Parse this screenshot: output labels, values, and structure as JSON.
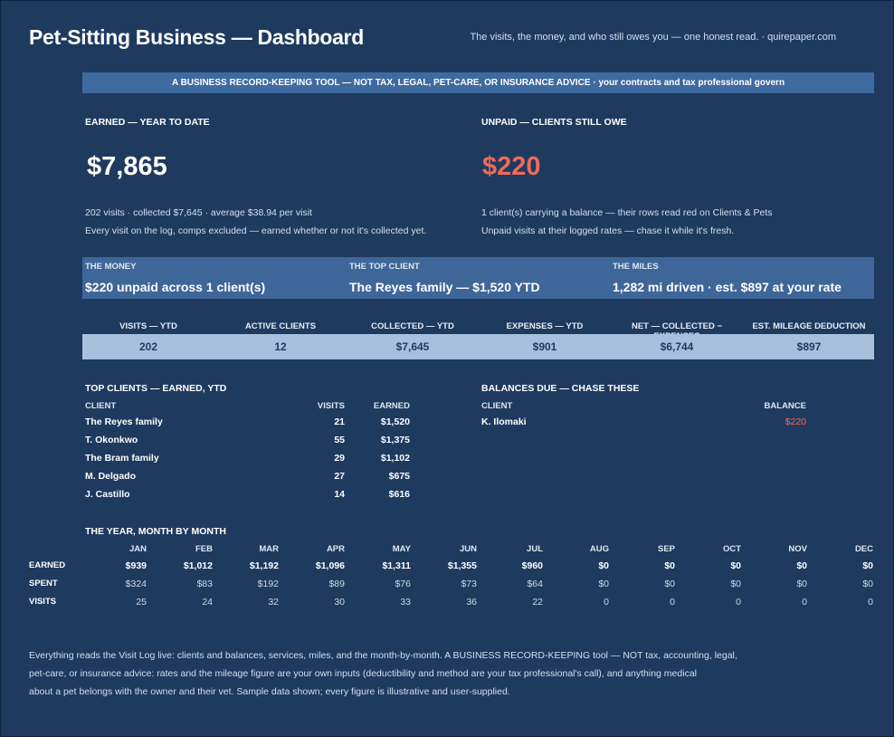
{
  "header": {
    "title": "Pet-Sitting Business — Dashboard",
    "tagline": "The visits, the money, and who still owes you — one honest read.  ·  quirepaper.com",
    "disclaimer": "A BUSINESS RECORD-KEEPING TOOL — NOT TAX, LEGAL, PET-CARE, OR INSURANCE ADVICE  ·  your contracts and tax professional govern"
  },
  "earned": {
    "label": "EARNED — YEAR TO DATE",
    "value": "$7,865",
    "note1": "202 visits  ·  collected $7,645  ·  average $38.94 per visit",
    "note2": "Every visit on the log, comps excluded — earned whether or not it's collected yet."
  },
  "unpaid": {
    "label": "UNPAID — CLIENTS STILL OWE",
    "value": "$220",
    "note1": "1 client(s) carrying a balance — their rows read red on Clients & Pets",
    "note2": "Unpaid visits at their logged rates — chase it while it's fresh."
  },
  "band": [
    {
      "heading": "THE MONEY",
      "value": "$220 unpaid across 1 client(s)"
    },
    {
      "heading": "THE TOP CLIENT",
      "value": "The Reyes family — $1,520 YTD"
    },
    {
      "heading": "THE MILES",
      "value": "1,282 mi driven · est. $897 at your rate"
    }
  ],
  "stats": [
    {
      "heading": "VISITS — YTD",
      "value": "202"
    },
    {
      "heading": "ACTIVE CLIENTS",
      "value": "12"
    },
    {
      "heading": "COLLECTED — YTD",
      "value": "$7,645"
    },
    {
      "heading": "EXPENSES — YTD",
      "value": "$901"
    },
    {
      "heading": "NET — COLLECTED − EXPENSES",
      "value": "$6,744"
    },
    {
      "heading": "EST. MILEAGE DEDUCTION",
      "value": "$897"
    }
  ],
  "top_clients": {
    "title": "TOP CLIENTS — EARNED, YTD",
    "col_client": "CLIENT",
    "col_visits": "VISITS",
    "col_earned": "EARNED",
    "rows": [
      {
        "client": "The Reyes family",
        "visits": "21",
        "earned": "$1,520"
      },
      {
        "client": "T. Okonkwo",
        "visits": "55",
        "earned": "$1,375"
      },
      {
        "client": "The Bram family",
        "visits": "29",
        "earned": "$1,102"
      },
      {
        "client": "M. Delgado",
        "visits": "27",
        "earned": "$675"
      },
      {
        "client": "J. Castillo",
        "visits": "14",
        "earned": "$616"
      }
    ]
  },
  "balances": {
    "title": "BALANCES DUE — CHASE THESE",
    "col_client": "CLIENT",
    "col_balance": "BALANCE",
    "rows": [
      {
        "client": "K. Ilomaki",
        "balance": "$220"
      }
    ]
  },
  "monthly": {
    "title": "THE YEAR, MONTH BY MONTH",
    "months": [
      "JAN",
      "FEB",
      "MAR",
      "APR",
      "MAY",
      "JUN",
      "JUL",
      "AUG",
      "SEP",
      "OCT",
      "NOV",
      "DEC"
    ],
    "row_labels": {
      "earned": "EARNED",
      "spent": "SPENT",
      "visits": "VISITS"
    },
    "earned": [
      "$939",
      "$1,012",
      "$1,192",
      "$1,096",
      "$1,311",
      "$1,355",
      "$960",
      "$0",
      "$0",
      "$0",
      "$0",
      "$0"
    ],
    "spent": [
      "$324",
      "$83",
      "$192",
      "$89",
      "$76",
      "$73",
      "$64",
      "$0",
      "$0",
      "$0",
      "$0",
      "$0"
    ],
    "visits": [
      "25",
      "24",
      "32",
      "30",
      "33",
      "36",
      "22",
      "0",
      "0",
      "0",
      "0",
      "0"
    ]
  },
  "footer": {
    "line1": "Everything reads the Visit Log live: clients and balances, services, miles, and the month-by-month. A BUSINESS RECORD-KEEPING tool — NOT tax, accounting, legal,",
    "line2": "pet-care, or insurance advice: rates and the mileage figure are your own inputs (deductibility and method are your tax professional's call), and anything medical",
    "line3": "about a pet belongs with the owner and their vet. Sample data shown; every figure is illustrative and user-supplied."
  },
  "colors": {
    "background": "#1f3a5f",
    "band": "#3e6699",
    "stats_bar": "#a8c0dc",
    "alert": "#ef6a5a"
  }
}
